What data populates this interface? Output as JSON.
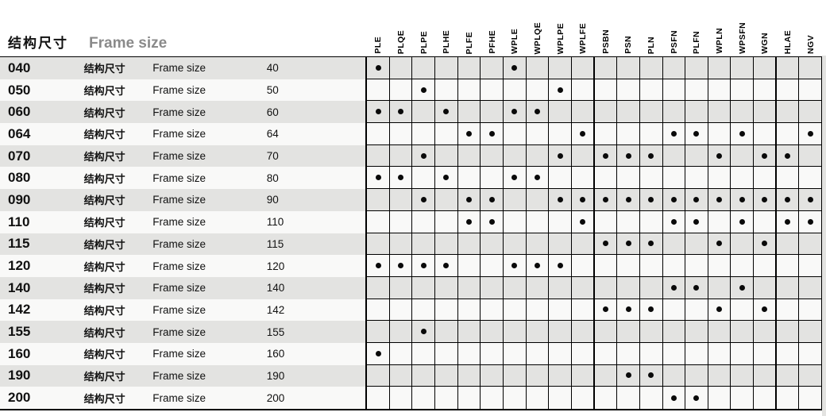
{
  "page_title": {
    "cn": "结构尺寸",
    "en": "Frame size"
  },
  "row_labels": {
    "cn": "结构尺寸",
    "en": "Frame size"
  },
  "columns": [
    "PLE",
    "PLQE",
    "PLPE",
    "PLHE",
    "PLFE",
    "PFHE",
    "WPLE",
    "WPLQE",
    "WPLPE",
    "WPLFE",
    "PSBN",
    "PSN",
    "PLN",
    "PSFN",
    "PLFN",
    "WPLN",
    "WPSFN",
    "WGN",
    "HLAE",
    "NGV"
  ],
  "group_separator_after": [
    "WPLFE",
    "WGN"
  ],
  "rows": [
    {
      "code": "040",
      "size": "40",
      "dots": [
        "PLE",
        "WPLE"
      ]
    },
    {
      "code": "050",
      "size": "50",
      "dots": [
        "PLPE",
        "WPLPE"
      ]
    },
    {
      "code": "060",
      "size": "60",
      "dots": [
        "PLE",
        "PLQE",
        "PLHE",
        "WPLE",
        "WPLQE"
      ]
    },
    {
      "code": "064",
      "size": "64",
      "dots": [
        "PLFE",
        "PFHE",
        "WPLFE",
        "PSFN",
        "PLFN",
        "WPSFN",
        "NGV"
      ]
    },
    {
      "code": "070",
      "size": "70",
      "dots": [
        "PLPE",
        "WPLPE",
        "PSBN",
        "PSN",
        "PLN",
        "WPLN",
        "WGN",
        "HLAE"
      ]
    },
    {
      "code": "080",
      "size": "80",
      "dots": [
        "PLE",
        "PLQE",
        "PLHE",
        "WPLE",
        "WPLQE"
      ]
    },
    {
      "code": "090",
      "size": "90",
      "dots": [
        "PLPE",
        "PLFE",
        "PFHE",
        "WPLPE",
        "WPLFE",
        "PSBN",
        "PSN",
        "PLN",
        "PSFN",
        "PLFN",
        "WPLN",
        "WPSFN",
        "WGN",
        "HLAE",
        "NGV"
      ]
    },
    {
      "code": "110",
      "size": "110",
      "dots": [
        "PLFE",
        "PFHE",
        "WPLFE",
        "PSFN",
        "PLFN",
        "WPSFN",
        "HLAE",
        "NGV"
      ]
    },
    {
      "code": "115",
      "size": "115",
      "dots": [
        "PSBN",
        "PSN",
        "PLN",
        "WPLN",
        "WGN"
      ]
    },
    {
      "code": "120",
      "size": "120",
      "dots": [
        "PLE",
        "PLQE",
        "PLPE",
        "PLHE",
        "WPLE",
        "WPLQE",
        "WPLPE"
      ]
    },
    {
      "code": "140",
      "size": "140",
      "dots": [
        "PSFN",
        "PLFN",
        "WPSFN"
      ]
    },
    {
      "code": "142",
      "size": "142",
      "dots": [
        "PSBN",
        "PSN",
        "PLN",
        "WPLN",
        "WGN"
      ]
    },
    {
      "code": "155",
      "size": "155",
      "dots": [
        "PLPE"
      ]
    },
    {
      "code": "160",
      "size": "160",
      "dots": [
        "PLE"
      ]
    },
    {
      "code": "190",
      "size": "190",
      "dots": [
        "PSN",
        "PLN"
      ]
    },
    {
      "code": "200",
      "size": "200",
      "dots": [
        "PSFN",
        "PLFN"
      ]
    }
  ],
  "colors": {
    "row_shaded": "#e3e3e1",
    "row_plain": "#f9f9f8",
    "title_en": "#8a8a8a",
    "grid_line": "#000000",
    "dot": "#0a0a0a"
  }
}
